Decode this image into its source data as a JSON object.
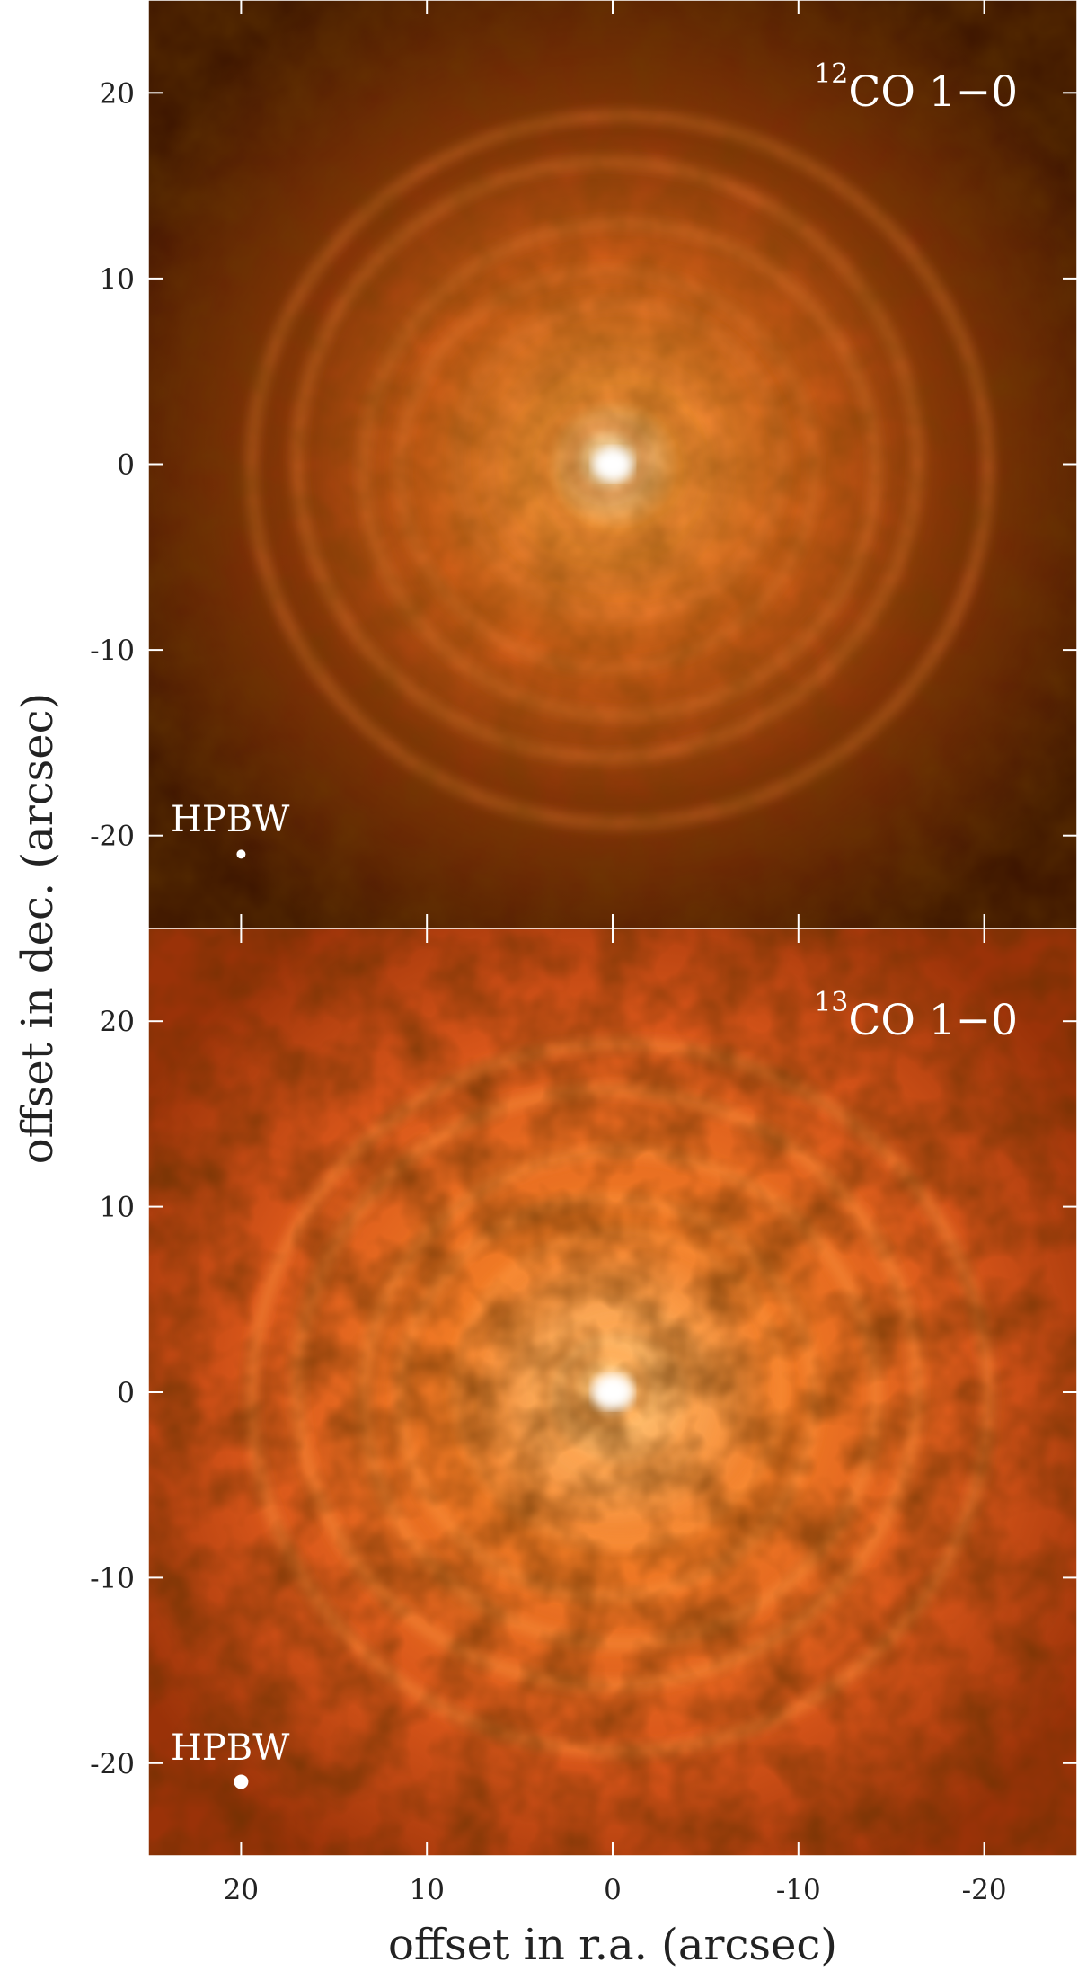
{
  "chart_data": [
    {
      "type": "image",
      "title_superscript": "12",
      "title": "CO 1−0",
      "annotation": "HPBW",
      "beam": {
        "x": 20,
        "y": -21
      },
      "ylabel": "offset in dec. (arcsec)",
      "xlim": [
        25,
        -25
      ],
      "ylim": [
        -25,
        25
      ],
      "xticks": [
        20,
        10,
        0,
        -10,
        -20
      ],
      "yticks": [
        -20,
        -10,
        0,
        10,
        20
      ]
    },
    {
      "type": "image",
      "title_superscript": "13",
      "title": "CO 1−0",
      "annotation": "HPBW",
      "beam": {
        "x": 20,
        "y": -21
      },
      "xlabel": "offset in r.a. (arcsec)",
      "xlim": [
        25,
        -25
      ],
      "ylim": [
        -25,
        25
      ],
      "xticks": [
        20,
        10,
        0,
        -10,
        -20
      ],
      "yticks": [
        -20,
        -10,
        0,
        10,
        20
      ]
    }
  ]
}
